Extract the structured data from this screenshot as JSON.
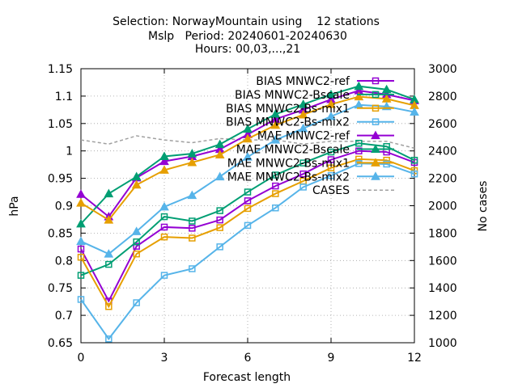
{
  "chart_data": {
    "type": "line",
    "title_lines": [
      "Selection: NorwayMountain using    12 stations",
      "Mslp   Period: 20240601-20240630",
      "Hours: 00,03,...,21"
    ],
    "xlabel": "Forecast length",
    "ylabel": "hPa",
    "y2label": "No cases",
    "xlim": [
      0,
      12
    ],
    "ylim": [
      0.65,
      1.15
    ],
    "y2lim": [
      1000,
      3000
    ],
    "x_ticks": [
      0,
      3,
      6,
      9,
      12
    ],
    "y_ticks": [
      0.65,
      0.7,
      0.75,
      0.8,
      0.85,
      0.9,
      0.95,
      1,
      1.05,
      1.1,
      1.15
    ],
    "y_tick_labels": [
      "0.65",
      "0.7",
      "0.75",
      "0.8",
      "0.85",
      "0.9",
      "0.95",
      "1",
      "1.05",
      "1.1",
      "1.15"
    ],
    "y2_ticks": [
      1000,
      1200,
      1400,
      1600,
      1800,
      2000,
      2200,
      2400,
      2600,
      2800,
      3000
    ],
    "grid": true,
    "legend_position": "top-right",
    "x": [
      0,
      1,
      2,
      3,
      4,
      5,
      6,
      7,
      8,
      9,
      10,
      11,
      12
    ],
    "series": [
      {
        "name": "BIAS MNWC2-ref",
        "color": "#9400d3",
        "marker": "square",
        "axis": "y",
        "values": [
          0.821,
          0.726,
          0.826,
          0.861,
          0.859,
          0.874,
          0.909,
          0.936,
          0.958,
          0.984,
          1.0,
          0.998,
          0.979
        ]
      },
      {
        "name": "BIAS MNWC2-Bscale",
        "color": "#009e73",
        "marker": "square",
        "axis": "y",
        "values": [
          0.773,
          0.793,
          0.834,
          0.88,
          0.872,
          0.891,
          0.925,
          0.956,
          0.978,
          0.998,
          1.014,
          1.008,
          0.983
        ]
      },
      {
        "name": "BIAS MNWC2-Bs-mix1",
        "color": "#e69f00",
        "marker": "square",
        "axis": "y",
        "values": [
          0.806,
          0.716,
          0.812,
          0.843,
          0.841,
          0.86,
          0.895,
          0.922,
          0.945,
          0.969,
          0.985,
          0.983,
          0.964
        ]
      },
      {
        "name": "BIAS MNWC2-Bs-mix2",
        "color": "#56b4e9",
        "marker": "square",
        "axis": "y",
        "values": [
          0.729,
          0.657,
          0.723,
          0.773,
          0.785,
          0.825,
          0.864,
          0.896,
          0.934,
          0.955,
          0.977,
          0.976,
          0.958
        ]
      },
      {
        "name": "MAE MNWC2-ref",
        "color": "#9400d3",
        "marker": "triangle",
        "axis": "y",
        "values": [
          0.921,
          0.88,
          0.951,
          0.981,
          0.99,
          1.003,
          1.03,
          1.058,
          1.075,
          1.094,
          1.11,
          1.103,
          1.092
        ]
      },
      {
        "name": "MAE MNWC2-Bscale",
        "color": "#009e73",
        "marker": "triangle",
        "axis": "y",
        "values": [
          0.867,
          0.922,
          0.953,
          0.99,
          0.995,
          1.012,
          1.04,
          1.067,
          1.085,
          1.103,
          1.118,
          1.112,
          1.094
        ]
      },
      {
        "name": "MAE MNWC2-Bs-mix1",
        "color": "#e69f00",
        "marker": "triangle",
        "axis": "y",
        "values": [
          0.905,
          0.874,
          0.938,
          0.965,
          0.979,
          0.993,
          1.022,
          1.047,
          1.066,
          1.085,
          1.099,
          1.095,
          1.083
        ]
      },
      {
        "name": "MAE MNWC2-Bs-mix2",
        "color": "#56b4e9",
        "marker": "triangle",
        "axis": "y",
        "values": [
          0.835,
          0.812,
          0.853,
          0.898,
          0.919,
          0.953,
          0.989,
          1.02,
          1.041,
          1.063,
          1.084,
          1.081,
          1.071
        ]
      },
      {
        "name": "CASES",
        "color": "#a0a0a0",
        "marker": "none",
        "dashed": true,
        "axis": "y2",
        "values": [
          2480,
          2450,
          2510,
          2480,
          2460,
          2490,
          2480,
          2480,
          2450,
          2470,
          2470,
          2470,
          2420
        ]
      }
    ]
  }
}
